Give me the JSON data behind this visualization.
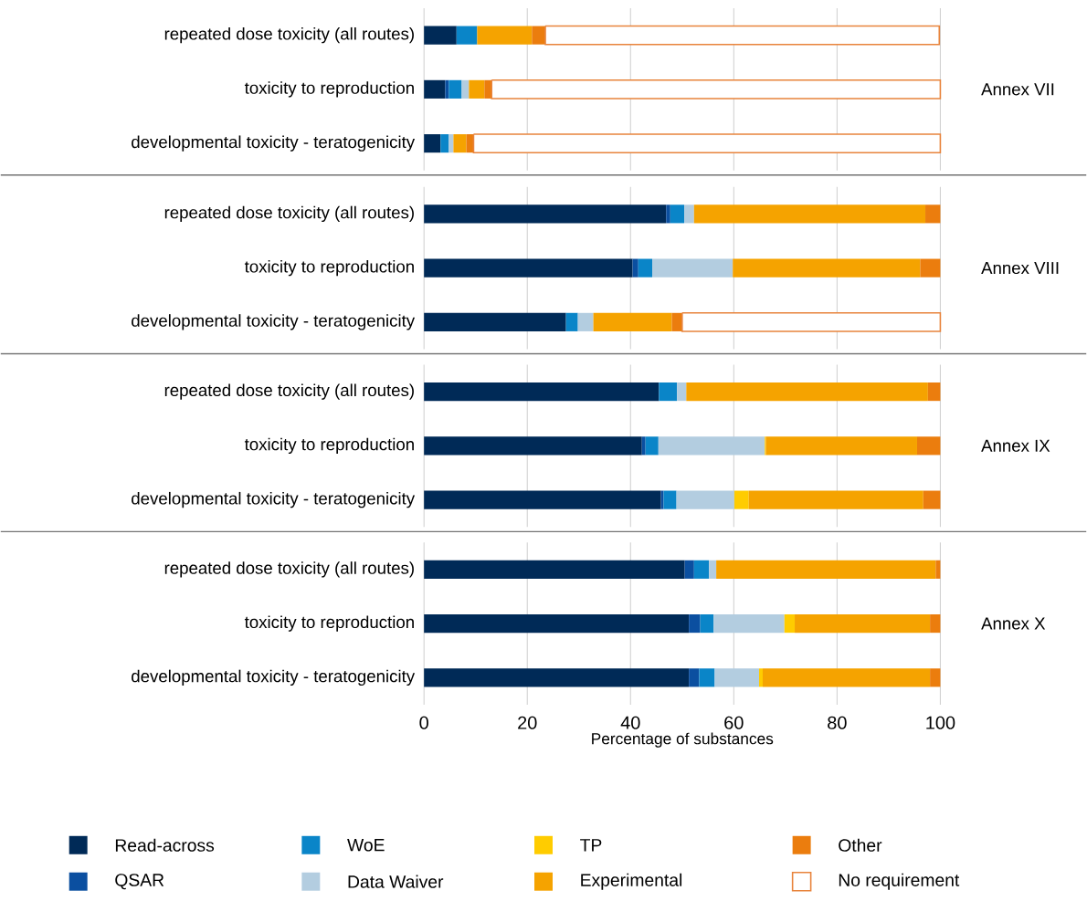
{
  "chart_data": [
    {
      "type": "bar",
      "orientation": "horizontal",
      "stacked": true,
      "y2label": "Annex VII",
      "grid": "x",
      "tick_labels": "y",
      "xlim": [
        0,
        100
      ],
      "xticks": [
        0,
        20,
        40,
        60,
        80,
        100
      ],
      "categories": [
        "repeated dose toxicity (all routes)",
        "toxicity to reproduction",
        "developmental toxicity - teratogenicity"
      ],
      "series": [
        {
          "color": "#002a57",
          "values": [
            6.3,
            4.1,
            3.2
          ]
        },
        {
          "color": "#0b4fa0",
          "values": [
            0,
            0.7,
            0
          ]
        },
        {
          "color": "#0a85c8",
          "values": [
            4.0,
            2.5,
            1.6
          ]
        },
        {
          "color": "#b3cde0",
          "values": [
            null,
            1.4,
            0.9
          ]
        },
        {
          "color": "#ffcc00",
          "values": [
            0,
            0,
            0
          ]
        },
        {
          "color": "#f5a300",
          "values": [
            10.6,
            3.0,
            2.5
          ]
        },
        {
          "color": "#eb7d0e",
          "values": [
            2.6,
            1.4,
            1.4
          ]
        },
        {
          "color": "#ffffff",
          "values": [
            76.3,
            86.9,
            90.4
          ]
        }
      ]
    },
    {
      "type": "bar",
      "orientation": "horizontal",
      "stacked": true,
      "y2label": "Annex VIII",
      "grid": "x",
      "tick_labels": "y",
      "xlim": [
        0,
        100
      ],
      "xticks": [
        0,
        20,
        40,
        60,
        80,
        100
      ],
      "categories": [
        "repeated dose toxicity (all routes)",
        "toxicity to reproduction",
        "developmental toxicity - teratogenicity"
      ],
      "series": [
        {
          "color": "#002a57",
          "values": [
            46.9,
            40.4,
            27.5
          ]
        },
        {
          "color": "#0b4fa0",
          "values": [
            0.8,
            1.1,
            0
          ]
        },
        {
          "color": "#0a85c8",
          "values": [
            2.7,
            2.7,
            2.3
          ]
        },
        {
          "color": "#b3cde0",
          "values": [
            1.9,
            15.6,
            3.0
          ]
        },
        {
          "color": "#ffcc00",
          "values": [
            0,
            0,
            0
          ]
        },
        {
          "color": "#f5a300",
          "values": [
            44.8,
            36.3,
            15.2
          ]
        },
        {
          "color": "#eb7d0e",
          "values": [
            2.9,
            3.9,
            2.0
          ]
        },
        {
          "color": "#ffffff",
          "values": [
            null,
            null,
            50.0
          ]
        }
      ]
    },
    {
      "type": "bar",
      "orientation": "horizontal",
      "stacked": true,
      "y2label": "Annex IX",
      "grid": "x",
      "tick_labels": "y",
      "xlim": [
        0,
        100
      ],
      "xticks": [
        0,
        20,
        40,
        60,
        80,
        100
      ],
      "categories": [
        "repeated dose toxicity (all routes)",
        "toxicity to reproduction",
        "developmental toxicity - teratogenicity"
      ],
      "series": [
        {
          "color": "#002a57",
          "values": [
            45.5,
            42.2,
            45.9
          ]
        },
        {
          "color": "#0b4fa0",
          "values": [
            0,
            0.7,
            0.5
          ]
        },
        {
          "color": "#0a85c8",
          "values": [
            3.5,
            2.5,
            2.5
          ]
        },
        {
          "color": "#b3cde0",
          "values": [
            1.8,
            20.6,
            11.2
          ]
        },
        {
          "color": "#ffcc00",
          "values": [
            0,
            0.2,
            2.8
          ]
        },
        {
          "color": "#f5a300",
          "values": [
            46.8,
            29.3,
            33.8
          ]
        },
        {
          "color": "#eb7d0e",
          "values": [
            2.4,
            4.5,
            3.3
          ]
        },
        {
          "color": "#ffffff",
          "values": [
            null,
            null,
            null
          ]
        }
      ]
    },
    {
      "type": "bar",
      "orientation": "horizontal",
      "stacked": true,
      "y2label": "Annex X",
      "grid": "x",
      "xlabel": "Percentage of substances",
      "legend": "bottom",
      "xlim": [
        0,
        100
      ],
      "xticks": [
        0,
        20,
        40,
        60,
        80,
        100
      ],
      "categories": [
        "repeated dose toxicity (all routes)",
        "toxicity to reproduction",
        "developmental toxicity - teratogenicity"
      ],
      "series": [
        {
          "name": "Read-across",
          "color": "#002a57",
          "values": [
            50.5,
            51.3,
            51.3
          ]
        },
        {
          "name": "QSAR",
          "color": "#0b4fa0",
          "values": [
            1.8,
            2.2,
            2.0
          ]
        },
        {
          "name": "WoE",
          "color": "#0a85c8",
          "values": [
            2.9,
            2.6,
            3.0
          ]
        },
        {
          "name": "Data Waiver",
          "color": "#b3cde0",
          "values": [
            1.4,
            13.7,
            8.6
          ]
        },
        {
          "name": "TP",
          "color": "#ffcc00",
          "values": [
            0,
            2.0,
            0.7
          ]
        },
        {
          "name": "Experimental",
          "color": "#f5a300",
          "values": [
            42.5,
            26.2,
            32.4
          ]
        },
        {
          "name": "Other",
          "color": "#eb7d0e",
          "values": [
            0.9,
            2.0,
            2.0
          ]
        },
        {
          "name": "No requirement",
          "color": "#ffffff",
          "values": [
            null,
            null,
            null
          ]
        }
      ]
    }
  ]
}
